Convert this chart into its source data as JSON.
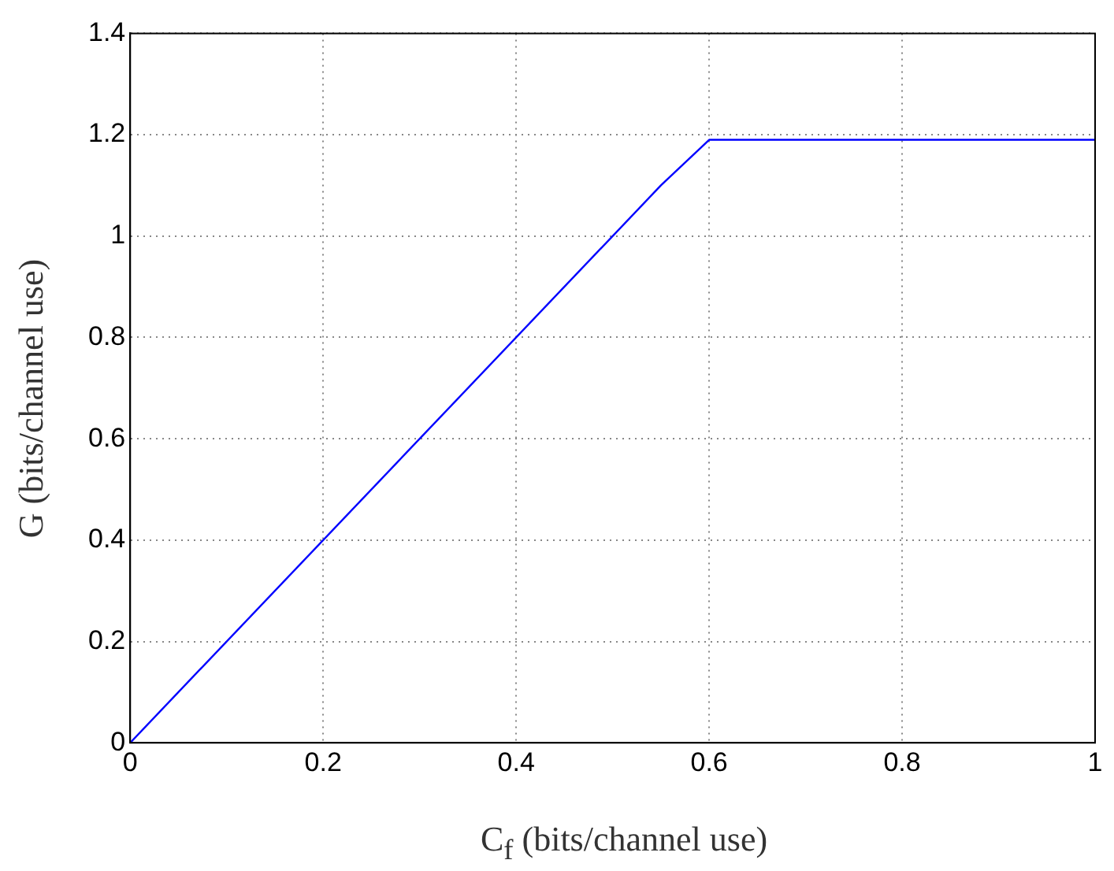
{
  "chart_data": {
    "type": "line",
    "xlabel": "C$_{f}$ (bits/channel use)",
    "ylabel": "G (bits/channel use)",
    "x": [
      0,
      0.55,
      0.6,
      1
    ],
    "series": [
      {
        "color": "#0000ff",
        "values": [
          0,
          1.1,
          1.19,
          1.19
        ]
      }
    ],
    "xlim": [
      0,
      1
    ],
    "xticks": [
      0,
      0.2,
      0.4,
      0.6,
      0.8,
      1
    ],
    "ylim": [
      0,
      1.4
    ],
    "yticks": [
      0,
      0.2,
      0.4,
      0.6,
      0.8,
      1,
      1.2,
      1.4
    ],
    "grid": true,
    "legend": false,
    "marker": "none",
    "line_style": "solid"
  }
}
